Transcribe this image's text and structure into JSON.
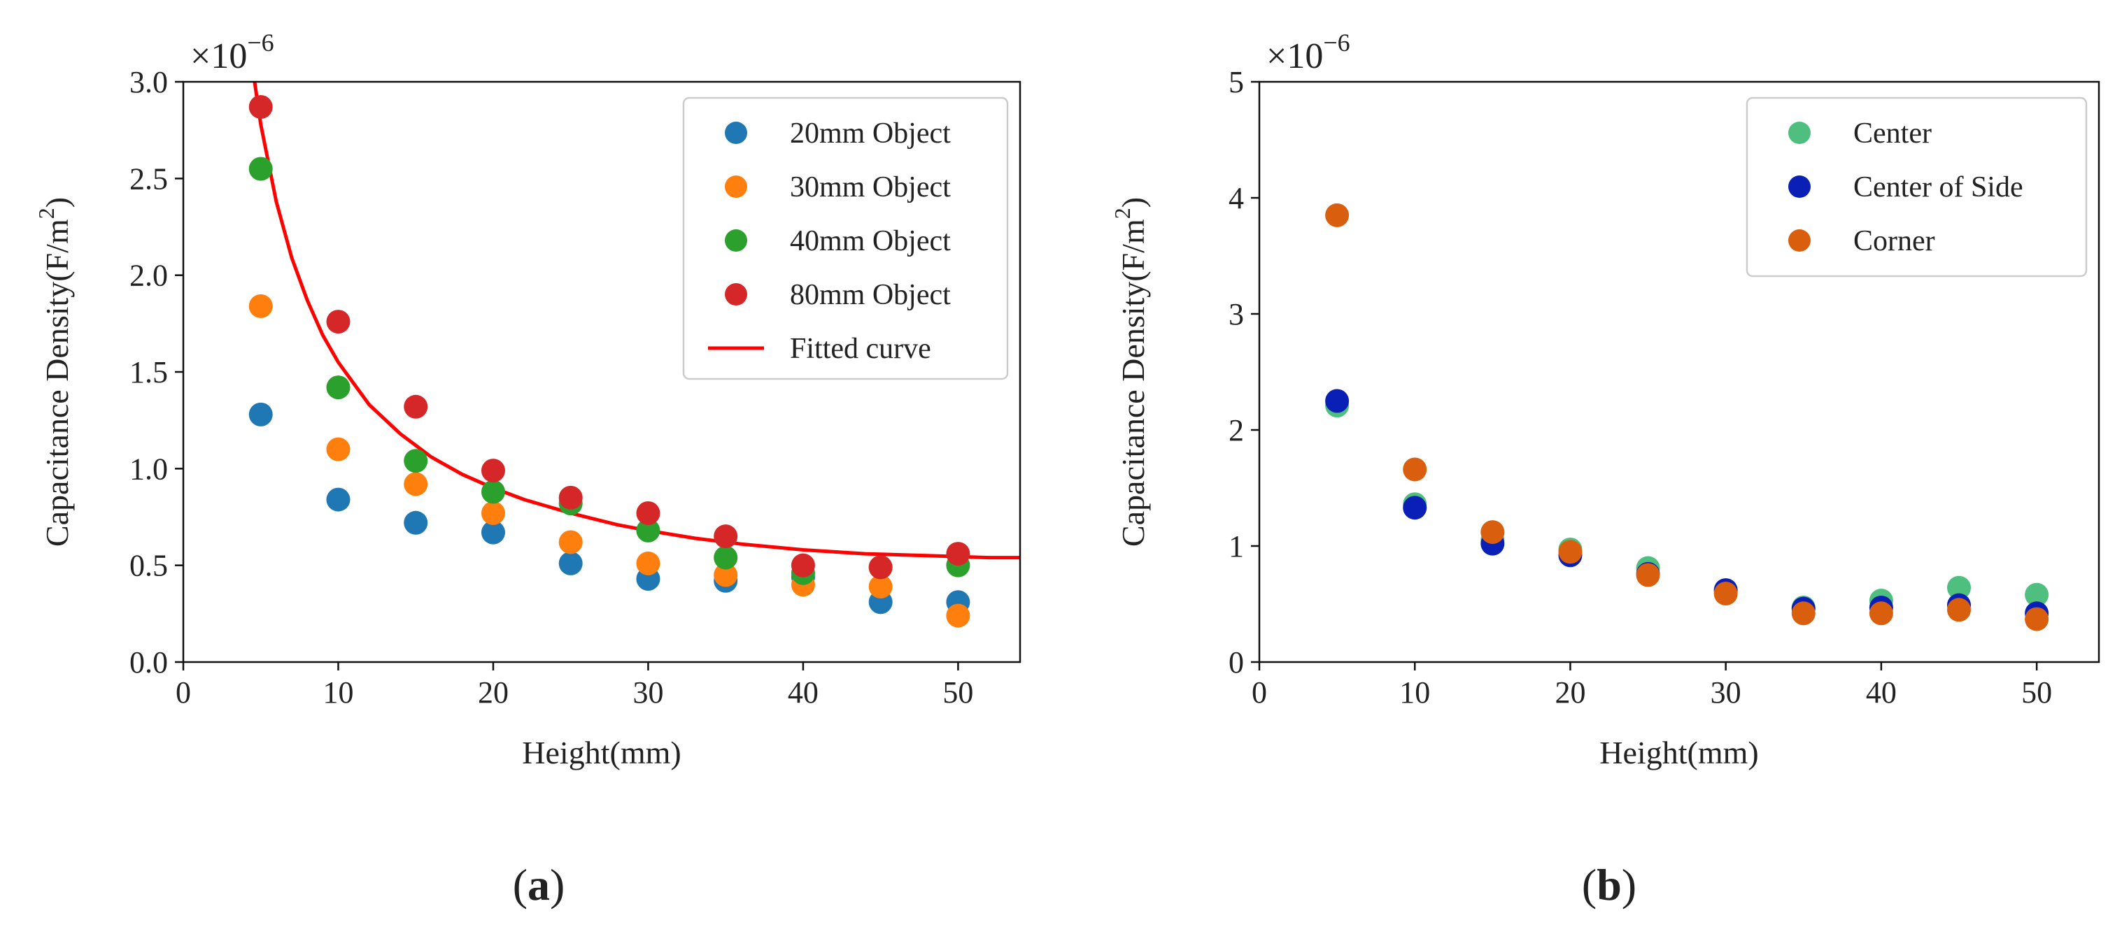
{
  "chart_data": [
    {
      "type": "scatter",
      "panel_label": "(a)",
      "scale_base": "×10",
      "scale_exp": "−6",
      "xlabel": "Height(mm)",
      "ylabel_main": "Capacitance Density(F/m",
      "ylabel_sup": "2",
      "ylabel_close": ")",
      "xlim": [
        0,
        54
      ],
      "ylim": [
        0,
        3.0
      ],
      "xticks": [
        0,
        10,
        20,
        30,
        40,
        50
      ],
      "xtick_labels": [
        "0",
        "10",
        "20",
        "30",
        "40",
        "50"
      ],
      "yticks": [
        0,
        0.5,
        1.0,
        1.5,
        2.0,
        2.5,
        3.0
      ],
      "ytick_labels": [
        "0.0",
        "0.5",
        "1.0",
        "1.5",
        "2.0",
        "2.5",
        "3.0"
      ],
      "legend_position": "upper-right",
      "series": [
        {
          "name": "20mm Object",
          "color": "#1f77b4",
          "x": [
            5,
            10,
            15,
            20,
            25,
            30,
            35,
            40,
            45,
            50
          ],
          "y": [
            1.28,
            0.84,
            0.72,
            0.67,
            0.51,
            0.43,
            0.42,
            0.44,
            0.31,
            0.31
          ]
        },
        {
          "name": "30mm Object",
          "color": "#ff7f0e",
          "x": [
            5,
            10,
            15,
            20,
            25,
            30,
            35,
            40,
            45,
            50
          ],
          "y": [
            1.84,
            1.1,
            0.92,
            0.77,
            0.62,
            0.51,
            0.45,
            0.4,
            0.39,
            0.24
          ]
        },
        {
          "name": "40mm Object",
          "color": "#2ca02c",
          "x": [
            5,
            10,
            15,
            20,
            25,
            30,
            35,
            40,
            45,
            50
          ],
          "y": [
            2.55,
            1.42,
            1.04,
            0.88,
            0.82,
            0.68,
            0.54,
            0.46,
            0.49,
            0.5
          ]
        },
        {
          "name": "80mm Object",
          "color": "#d62728",
          "x": [
            5,
            10,
            15,
            20,
            25,
            30,
            35,
            40,
            45,
            50
          ],
          "y": [
            2.87,
            1.76,
            1.32,
            0.99,
            0.85,
            0.77,
            0.65,
            0.5,
            0.49,
            0.56
          ]
        }
      ],
      "fit": {
        "name": "Fitted curve",
        "color": "#ff0000",
        "x": [
          4.6,
          5,
          6,
          7,
          8,
          9,
          10,
          12,
          14,
          16,
          18,
          20,
          22,
          25,
          28,
          30,
          33,
          36,
          40,
          44,
          48,
          52,
          54
        ],
        "y": [
          3.0,
          2.78,
          2.38,
          2.09,
          1.87,
          1.69,
          1.55,
          1.33,
          1.18,
          1.06,
          0.97,
          0.9,
          0.84,
          0.77,
          0.71,
          0.68,
          0.64,
          0.61,
          0.58,
          0.56,
          0.55,
          0.54,
          0.54
        ]
      }
    },
    {
      "type": "scatter",
      "panel_label": "(b)",
      "scale_base": "×10",
      "scale_exp": "−6",
      "xlabel": "Height(mm)",
      "ylabel_main": "Capacitance Density(F/m",
      "ylabel_sup": "2",
      "ylabel_close": ")",
      "xlim": [
        0,
        54
      ],
      "ylim": [
        0,
        5
      ],
      "xticks": [
        0,
        10,
        20,
        30,
        40,
        50
      ],
      "xtick_labels": [
        "0",
        "10",
        "20",
        "30",
        "40",
        "50"
      ],
      "yticks": [
        0,
        1,
        2,
        3,
        4,
        5
      ],
      "ytick_labels": [
        "0",
        "1",
        "2",
        "3",
        "4",
        "5"
      ],
      "legend_position": "upper-right",
      "series": [
        {
          "name": "Center",
          "color": "#4fbf7f",
          "x": [
            5,
            10,
            15,
            20,
            25,
            30,
            35,
            40,
            45,
            50
          ],
          "y": [
            2.21,
            1.36,
            1.05,
            0.97,
            0.81,
            0.61,
            0.47,
            0.53,
            0.64,
            0.58
          ]
        },
        {
          "name": "Center of Side",
          "color": "#0a1fb5",
          "x": [
            5,
            10,
            15,
            20,
            25,
            30,
            35,
            40,
            45,
            50
          ],
          "y": [
            2.25,
            1.33,
            1.02,
            0.92,
            0.76,
            0.62,
            0.46,
            0.47,
            0.49,
            0.42
          ]
        },
        {
          "name": "Corner",
          "color": "#d95f0e",
          "x": [
            5,
            10,
            15,
            20,
            25,
            30,
            35,
            40,
            45,
            50
          ],
          "y": [
            3.85,
            1.66,
            1.12,
            0.95,
            0.75,
            0.59,
            0.42,
            0.42,
            0.45,
            0.37
          ]
        }
      ]
    }
  ]
}
